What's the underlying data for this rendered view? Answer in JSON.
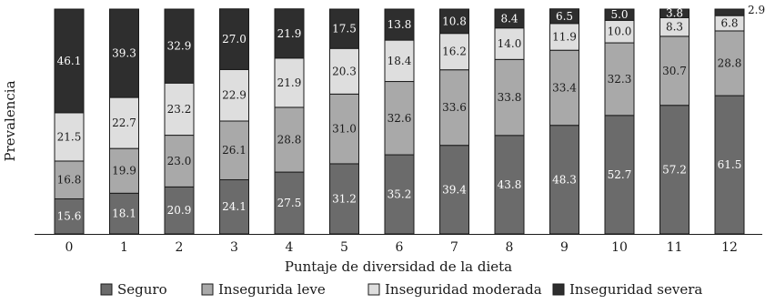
{
  "chart_data": {
    "type": "bar",
    "stacked": true,
    "categories": [
      "0",
      "1",
      "2",
      "3",
      "4",
      "5",
      "6",
      "7",
      "8",
      "9",
      "10",
      "11",
      "12"
    ],
    "series": [
      {
        "name": "Seguro",
        "color": "#6b6b6b",
        "values": [
          15.6,
          18.1,
          20.9,
          24.1,
          27.5,
          31.2,
          35.2,
          39.4,
          43.8,
          48.3,
          52.7,
          57.2,
          61.5
        ]
      },
      {
        "name": "Insegurida leve",
        "color": "#a9a9a9",
        "values": [
          16.8,
          19.9,
          23.0,
          26.1,
          28.8,
          31.0,
          32.6,
          33.6,
          33.8,
          33.4,
          32.3,
          30.7,
          28.8
        ]
      },
      {
        "name": "Inseguridad moderada",
        "color": "#dedede",
        "values": [
          21.5,
          22.7,
          23.2,
          22.9,
          21.9,
          20.3,
          18.4,
          16.2,
          14.0,
          11.9,
          10.0,
          8.3,
          6.8
        ]
      },
      {
        "name": "Inseguridad severa",
        "color": "#2e2e2e",
        "values": [
          46.1,
          39.3,
          32.9,
          27.0,
          21.9,
          17.5,
          13.8,
          10.8,
          8.4,
          6.5,
          5.0,
          3.8,
          2.9
        ]
      }
    ],
    "data_labels": [
      [
        "15.6",
        "18.1",
        "20.9",
        "24.1",
        "27.5",
        "31.2",
        "35.2",
        "39.4",
        "43.8",
        "48.3",
        "52.7",
        "57.2",
        "61.5"
      ],
      [
        "16.8",
        "19.9",
        "23.0",
        "26.1",
        "28.8",
        "31.0",
        "32.6",
        "33.6",
        "33.8",
        "33.4",
        "32.3",
        "30.7",
        "28.8"
      ],
      [
        "21.5",
        "22.7",
        "23.2",
        "22.9",
        "21.9",
        "20.3",
        "18.4",
        "16.2",
        "14.0",
        "11.9",
        "10.0",
        "8.3",
        "6.8"
      ],
      [
        "46.1",
        "39.3",
        "32.9",
        "27.0",
        "21.9",
        "17.5",
        "13.8",
        "10.8",
        "8.4",
        "6.5",
        "5.0",
        "3.8",
        "2.9"
      ]
    ],
    "label_colors": [
      "#ffffff",
      "#1a1a1a",
      "#1a1a1a",
      "#ffffff"
    ],
    "xlabel": "Puntaje de diversidad de la dieta",
    "ylabel": "Prevalencia",
    "ylim": [
      0,
      100
    ],
    "grid": false,
    "legend_position": "bottom",
    "outside_label_series_index": 3,
    "outside_label_category_index": 12
  }
}
